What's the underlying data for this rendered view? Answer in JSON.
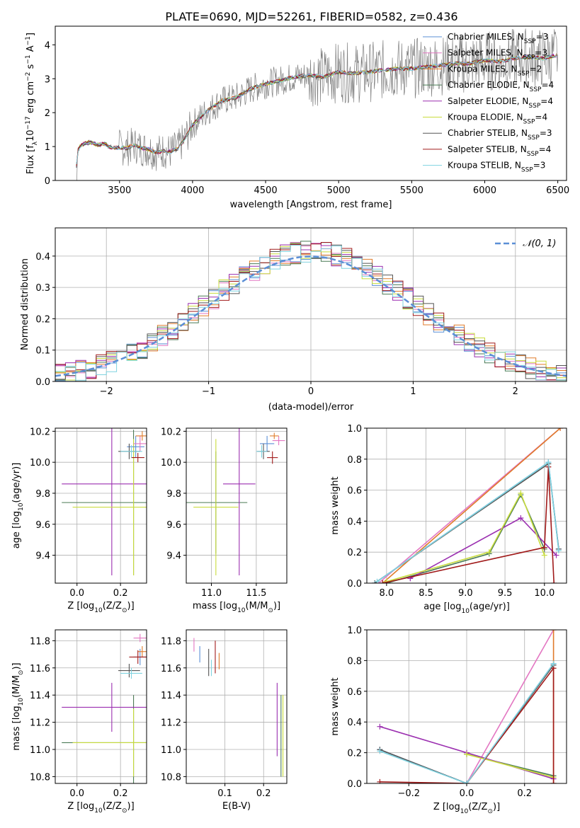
{
  "figure": {
    "title": "PLATE=0690, MJD=52261, FIBERID=0582, z=0.436"
  },
  "colors": {
    "chabrier_miles": "#5b8fd6",
    "salpeter_miles": "#e377c2",
    "kroupa_miles": "#e07b2a",
    "chabrier_elodie": "#4a7a55",
    "salpeter_elodie": "#9b2fb0",
    "kroupa_elodie": "#c8dc3c",
    "chabrier_stelib": "#555555",
    "salpeter_stelib": "#a01a1a",
    "kroupa_stelib": "#7fd3e0",
    "observed_spectrum": "#808080",
    "normal_curve": "#5b8fd6",
    "grid": "#b0b0b0"
  },
  "legend": {
    "models": [
      {
        "name": "Chabrier MILES, N",
        "sub": "SSP",
        "suffix": "=3",
        "color_key": "chabrier_miles"
      },
      {
        "name": "Salpeter MILES, N",
        "sub": "SSP",
        "suffix": "=3",
        "color_key": "salpeter_miles"
      },
      {
        "name": "Kroupa MILES, N",
        "sub": "SSP",
        "suffix": "=2",
        "color_key": "kroupa_miles"
      },
      {
        "name": "Chabrier ELODIE, N",
        "sub": "SSP",
        "suffix": "=4",
        "color_key": "chabrier_elodie"
      },
      {
        "name": "Salpeter ELODIE, N",
        "sub": "SSP",
        "suffix": "=4",
        "color_key": "salpeter_elodie"
      },
      {
        "name": "Kroupa ELODIE, N",
        "sub": "SSP",
        "suffix": "=4",
        "color_key": "kroupa_elodie"
      },
      {
        "name": "Chabrier STELIB, N",
        "sub": "SSP",
        "suffix": "=3",
        "color_key": "chabrier_stelib"
      },
      {
        "name": "Salpeter STELIB, N",
        "sub": "SSP",
        "suffix": "=4",
        "color_key": "salpeter_stelib"
      },
      {
        "name": "Kroupa STELIB, N",
        "sub": "SSP",
        "suffix": "=3",
        "color_key": "kroupa_stelib"
      }
    ],
    "normal_label": "𝒩(0, 1)"
  },
  "chart_data": [
    {
      "id": "spectrum",
      "type": "line",
      "title": "PLATE=0690, MJD=52261, FIBERID=0582, z=0.436",
      "xlabel": "wavelength [Angstrom, rest frame]",
      "ylabel": "Flux [f",
      "ylabel_sub": "λ",
      "ylabel_rest": "10",
      "ylabel_sup1": "−17",
      "ylabel_mid": " erg cm",
      "ylabel_sup2": "−2",
      "ylabel_mid2": " s",
      "ylabel_sup3": "−1",
      "ylabel_mid3": " A",
      "ylabel_sup4": "−1",
      "ylabel_end": "]",
      "xlim": [
        3060,
        6560
      ],
      "ylim": [
        0,
        4.55
      ],
      "xticks": [
        3500,
        4000,
        4500,
        5000,
        5500,
        6000,
        6500
      ],
      "yticks": [
        0,
        1,
        2,
        3,
        4
      ],
      "grid": false,
      "legend_position": "right",
      "continuum": {
        "x": [
          3200,
          3210,
          3230,
          3260,
          3300,
          3350,
          3400,
          3450,
          3500,
          3550,
          3600,
          3650,
          3700,
          3750,
          3800,
          3850,
          3900,
          3950,
          4000,
          4100,
          4200,
          4300,
          4400,
          4500,
          4600,
          4700,
          4800,
          4900,
          5000,
          5100,
          5200,
          5300,
          5400,
          5500,
          5600,
          5700,
          5800,
          5900,
          6000,
          6100,
          6200,
          6300,
          6400,
          6500
        ],
        "y": [
          0.0,
          0.85,
          1.0,
          1.1,
          1.12,
          1.05,
          1.08,
          0.95,
          0.98,
          0.95,
          1.05,
          0.95,
          0.92,
          0.82,
          0.88,
          0.85,
          0.95,
          1.25,
          1.65,
          2.05,
          2.35,
          2.45,
          2.7,
          2.85,
          2.95,
          3.05,
          3.1,
          3.05,
          3.2,
          3.15,
          3.2,
          3.25,
          3.3,
          3.3,
          3.35,
          3.4,
          3.45,
          3.45,
          3.55,
          3.5,
          3.6,
          3.65,
          3.6,
          3.7
        ]
      }
    },
    {
      "id": "residuals",
      "type": "bar",
      "xlabel": "(data-model)/error",
      "ylabel": "Normed distribution",
      "xlim": [
        -2.5,
        2.5
      ],
      "ylim": [
        0,
        0.49
      ],
      "xticks": [
        -2,
        -1,
        0,
        1,
        2
      ],
      "xticklabels": [
        "−2",
        "−1",
        "0",
        "1",
        "2"
      ],
      "yticks": [
        0.0,
        0.1,
        0.2,
        0.3,
        0.4
      ],
      "grid": true,
      "legend_position": "top-right",
      "bin_start": -2.5,
      "bin_width": 0.1,
      "normal_curve": {
        "mean": 0,
        "sigma": 1
      }
    },
    {
      "id": "age_vs_Z",
      "type": "scatter",
      "xlabel": "Z [log",
      "xlabel_sub": "10",
      "xlabel_end": "(Z/Z",
      "xlabel_sub2": "⊙",
      "xlabel_close": ")]",
      "ylabel": "age  [log",
      "ylabel_sub": "10",
      "ylabel_end": "(age/yr)]",
      "xlim": [
        -0.1,
        0.32
      ],
      "ylim": [
        9.22,
        10.22
      ],
      "xticks": [
        0.0,
        0.2
      ],
      "yticks": [
        9.4,
        9.6,
        9.8,
        10.0,
        10.2
      ],
      "grid": true,
      "points": [
        {
          "model": "chabrier_elodie",
          "x": 0.26,
          "xerr": 0.33,
          "y": 9.74,
          "yerr": 0.47
        },
        {
          "model": "salpeter_elodie",
          "x": 0.16,
          "xerr": 0.23,
          "y": 9.86,
          "yerr": 0.59
        },
        {
          "model": "kroupa_elodie",
          "x": 0.26,
          "xerr": 0.28,
          "y": 9.71,
          "yerr": 0.44
        },
        {
          "model": "chabrier_miles",
          "x": 0.27,
          "xerr": 0.04,
          "y": 10.1,
          "yerr": 0.07
        },
        {
          "model": "salpeter_miles",
          "x": 0.29,
          "xerr": 0.03,
          "y": 10.12,
          "yerr": 0.05
        },
        {
          "model": "kroupa_miles",
          "x": 0.3,
          "xerr": 0.03,
          "y": 10.17,
          "yerr": 0.03
        },
        {
          "model": "chabrier_stelib",
          "x": 0.24,
          "xerr": 0.05,
          "y": 10.07,
          "yerr": 0.05
        },
        {
          "model": "salpeter_stelib",
          "x": 0.28,
          "xerr": 0.03,
          "y": 10.03,
          "yerr": 0.03
        },
        {
          "model": "kroupa_stelib",
          "x": 0.25,
          "xerr": 0.05,
          "y": 10.07,
          "yerr": 0.04
        }
      ]
    },
    {
      "id": "age_vs_mass",
      "type": "scatter",
      "xlabel": "mass [log",
      "xlabel_sub": "10",
      "xlabel_end": "(M/M",
      "xlabel_sub2": "⊙",
      "xlabel_close": ")]",
      "xlim": [
        10.72,
        11.84
      ],
      "ylim": [
        9.22,
        10.22
      ],
      "xticks": [
        11.0,
        11.5
      ],
      "yticks": [
        9.4,
        9.6,
        9.8,
        10.0,
        10.2
      ],
      "grid": true,
      "points": [
        {
          "model": "chabrier_elodie",
          "x": 11.05,
          "xerr": 0.35,
          "y": 9.74,
          "yerr": 0.33
        },
        {
          "model": "salpeter_elodie",
          "x": 11.31,
          "xerr": 0.18,
          "y": 9.86,
          "yerr": 0.59
        },
        {
          "model": "kroupa_elodie",
          "x": 11.05,
          "xerr": 0.25,
          "y": 9.71,
          "yerr": 0.44
        },
        {
          "model": "chabrier_miles",
          "x": 11.62,
          "xerr": 0.08,
          "y": 10.12,
          "yerr": 0.05
        },
        {
          "model": "salpeter_miles",
          "x": 11.75,
          "xerr": 0.07,
          "y": 10.14,
          "yerr": 0.03
        },
        {
          "model": "kroupa_miles",
          "x": 11.7,
          "xerr": 0.05,
          "y": 10.17,
          "yerr": 0.02
        },
        {
          "model": "chabrier_stelib",
          "x": 11.58,
          "xerr": 0.07,
          "y": 10.07,
          "yerr": 0.05
        },
        {
          "model": "salpeter_stelib",
          "x": 11.68,
          "xerr": 0.06,
          "y": 10.03,
          "yerr": 0.04
        },
        {
          "model": "kroupa_stelib",
          "x": 11.56,
          "xerr": 0.06,
          "y": 10.07,
          "yerr": 0.04
        }
      ]
    },
    {
      "id": "mass_weight_vs_age",
      "type": "line",
      "xlabel": "age  [log",
      "xlabel_sub": "10",
      "xlabel_end": "(age/yr)]",
      "ylabel": "mass weight",
      "xlim": [
        7.75,
        10.28
      ],
      "ylim": [
        0,
        1.0
      ],
      "xticks": [
        8.0,
        8.5,
        9.0,
        9.5,
        10.0
      ],
      "yticks": [
        0.0,
        0.2,
        0.4,
        0.6,
        0.8,
        1.0
      ],
      "grid": true,
      "series": [
        {
          "model": "chabrier_miles",
          "x": [
            7.85,
            10.05,
            10.18
          ],
          "y": [
            0.0,
            0.78,
            0.22
          ]
        },
        {
          "model": "salpeter_miles",
          "x": [
            7.9,
            10.2
          ],
          "y": [
            0.0,
            1.0
          ]
        },
        {
          "model": "kroupa_miles",
          "x": [
            7.95,
            10.2
          ],
          "y": [
            0.0,
            1.0
          ]
        },
        {
          "model": "chabrier_elodie",
          "x": [
            8.0,
            9.3,
            9.7,
            10.0
          ],
          "y": [
            0.0,
            0.19,
            0.57,
            0.22
          ]
        },
        {
          "model": "salpeter_elodie",
          "x": [
            8.3,
            9.7,
            10.15
          ],
          "y": [
            0.03,
            0.42,
            0.18
          ]
        },
        {
          "model": "kroupa_elodie",
          "x": [
            8.0,
            9.3,
            9.7,
            10.0
          ],
          "y": [
            0.01,
            0.2,
            0.58,
            0.18
          ]
        },
        {
          "model": "chabrier_stelib",
          "x": [
            7.85,
            10.05,
            10.18
          ],
          "y": [
            0.0,
            0.77,
            0.22
          ]
        },
        {
          "model": "salpeter_stelib",
          "x": [
            7.95,
            10.0,
            10.05,
            10.12
          ],
          "y": [
            0.0,
            0.23,
            0.75,
            0.0
          ]
        },
        {
          "model": "kroupa_stelib",
          "x": [
            7.88,
            10.05,
            10.18
          ],
          "y": [
            0.01,
            0.78,
            0.21
          ]
        }
      ]
    },
    {
      "id": "mass_vs_Z",
      "type": "scatter",
      "xlabel": "Z [log",
      "xlabel_sub": "10",
      "xlabel_end": "(Z/Z",
      "xlabel_sub2": "⊙",
      "xlabel_close": ")]",
      "ylabel": "mass [log",
      "ylabel_sub": "10",
      "ylabel_end": "(M/M",
      "ylabel_sub2": "⊙",
      "ylabel_close": ")]",
      "xlim": [
        -0.1,
        0.32
      ],
      "ylim": [
        10.75,
        11.88
      ],
      "xticks": [
        0.0,
        0.2
      ],
      "yticks": [
        10.8,
        11.0,
        11.2,
        11.4,
        11.6,
        11.8
      ],
      "grid": true,
      "points": [
        {
          "model": "chabrier_elodie",
          "x": 0.26,
          "xerr": 0.33,
          "y": 11.05,
          "yerr": 0.35
        },
        {
          "model": "salpeter_elodie",
          "x": 0.16,
          "xerr": 0.23,
          "y": 11.31,
          "yerr": 0.18
        },
        {
          "model": "kroupa_elodie",
          "x": 0.26,
          "xerr": 0.28,
          "y": 11.05,
          "yerr": 0.25
        },
        {
          "model": "chabrier_miles",
          "x": 0.29,
          "xerr": 0.03,
          "y": 11.68,
          "yerr": 0.06
        },
        {
          "model": "salpeter_miles",
          "x": 0.29,
          "xerr": 0.03,
          "y": 11.82,
          "yerr": 0.03
        },
        {
          "model": "kroupa_miles",
          "x": 0.3,
          "xerr": 0.02,
          "y": 11.72,
          "yerr": 0.04
        },
        {
          "model": "chabrier_stelib",
          "x": 0.24,
          "xerr": 0.05,
          "y": 11.58,
          "yerr": 0.05
        },
        {
          "model": "salpeter_stelib",
          "x": 0.28,
          "xerr": 0.04,
          "y": 11.68,
          "yerr": 0.05
        },
        {
          "model": "kroupa_stelib",
          "x": 0.25,
          "xerr": 0.05,
          "y": 11.56,
          "yerr": 0.04
        }
      ]
    },
    {
      "id": "mass_vs_ebv",
      "type": "scatter",
      "xlabel": "E(B-V)",
      "xlim": [
        0.0,
        0.26
      ],
      "ylim": [
        10.75,
        11.88
      ],
      "xticks": [
        0.1,
        0.2
      ],
      "yticks": [
        10.8,
        11.0,
        11.2,
        11.4,
        11.6,
        11.8
      ],
      "grid": true,
      "points": [
        {
          "model": "chabrier_miles",
          "x": 0.035,
          "y": 11.7,
          "yerr": 0.06
        },
        {
          "model": "salpeter_miles",
          "x": 0.02,
          "y": 11.77,
          "yerr": 0.05
        },
        {
          "model": "kroupa_miles",
          "x": 0.085,
          "y": 11.65,
          "yerr": 0.06
        },
        {
          "model": "chabrier_elodie",
          "x": 0.245,
          "y": 11.1,
          "yerr": 0.3
        },
        {
          "model": "salpeter_elodie",
          "x": 0.235,
          "y": 11.22,
          "yerr": 0.27
        },
        {
          "model": "kroupa_elodie",
          "x": 0.25,
          "y": 11.1,
          "yerr": 0.3
        },
        {
          "model": "chabrier_stelib",
          "x": 0.058,
          "y": 11.64,
          "yerr": 0.1
        },
        {
          "model": "salpeter_stelib",
          "x": 0.075,
          "y": 11.68,
          "yerr": 0.12
        },
        {
          "model": "kroupa_stelib",
          "x": 0.065,
          "y": 11.6,
          "yerr": 0.06
        }
      ]
    },
    {
      "id": "mass_weight_vs_Z",
      "type": "line",
      "xlabel": "Z [log",
      "xlabel_sub": "10",
      "xlabel_end": "(Z/Z",
      "xlabel_sub2": "⊙",
      "xlabel_close": ")]",
      "ylabel": "mass weight",
      "xlim": [
        -0.345,
        0.345
      ],
      "ylim": [
        0,
        1.0
      ],
      "xticks": [
        -0.2,
        0.0,
        0.2
      ],
      "xticklabels": [
        "−0.2",
        "0.0",
        "0.2"
      ],
      "yticks": [
        0.0,
        0.2,
        0.4,
        0.6,
        0.8,
        1.0
      ],
      "grid": true,
      "series": [
        {
          "model": "chabrier_miles",
          "x": [
            -0.3,
            0.0,
            0.3
          ],
          "y": [
            0.22,
            0.0,
            0.78
          ]
        },
        {
          "model": "salpeter_miles",
          "x": [
            0.0,
            0.3
          ],
          "y": [
            0.0,
            1.0
          ]
        },
        {
          "model": "kroupa_miles",
          "x": [
            0.3,
            0.3
          ],
          "y": [
            0.0,
            1.0
          ]
        },
        {
          "model": "chabrier_elodie",
          "x": [
            0.0,
            0.3
          ],
          "y": [
            0.19,
            0.05
          ]
        },
        {
          "model": "salpeter_elodie",
          "x": [
            -0.3,
            0.0,
            0.3
          ],
          "y": [
            0.37,
            0.2,
            0.03
          ]
        },
        {
          "model": "kroupa_elodie",
          "x": [
            0.0,
            0.3
          ],
          "y": [
            0.19,
            0.04
          ]
        },
        {
          "model": "chabrier_stelib",
          "x": [
            -0.3,
            0.0,
            0.3
          ],
          "y": [
            0.22,
            0.0,
            0.77
          ]
        },
        {
          "model": "salpeter_stelib",
          "x": [
            -0.3,
            0.0,
            0.3,
            0.3
          ],
          "y": [
            0.01,
            0.0,
            0.75,
            0.0
          ]
        },
        {
          "model": "kroupa_stelib",
          "x": [
            -0.3,
            0.0,
            0.3
          ],
          "y": [
            0.21,
            0.0,
            0.78
          ]
        }
      ]
    }
  ]
}
